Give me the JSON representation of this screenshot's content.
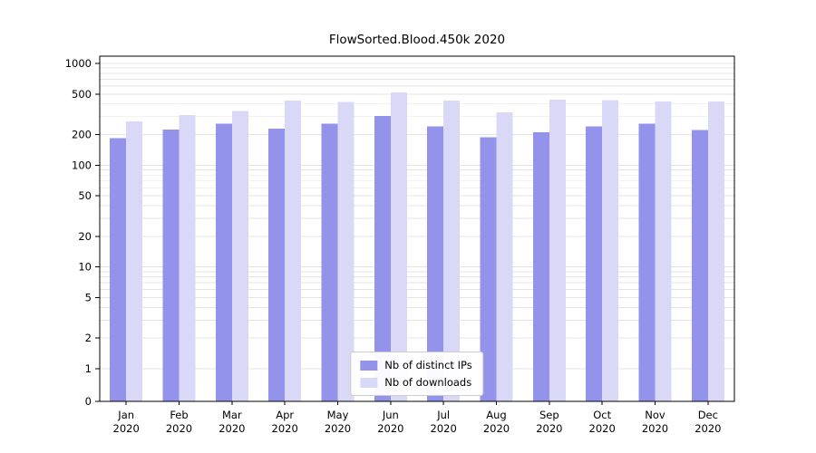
{
  "title": "FlowSorted.Blood.450k 2020",
  "chart_data": {
    "type": "bar",
    "title": "FlowSorted.Blood.450k 2020",
    "categories": [
      "Jan",
      "Feb",
      "Mar",
      "Apr",
      "May",
      "Jun",
      "Jul",
      "Aug",
      "Sep",
      "Oct",
      "Nov",
      "Dec"
    ],
    "year": "2020",
    "series": [
      {
        "name": "Nb of distinct IPs",
        "color": "#9493ec",
        "values": [
          185,
          225,
          255,
          228,
          255,
          305,
          240,
          188,
          210,
          240,
          255,
          222
        ]
      },
      {
        "name": "Nb of downloads",
        "color": "#d9d9f7",
        "values": [
          270,
          310,
          340,
          430,
          420,
          520,
          430,
          330,
          440,
          435,
          425,
          425
        ]
      }
    ],
    "yscale": "log-with-zero-baseline",
    "yticks": [
      0,
      1,
      2,
      5,
      10,
      20,
      50,
      100,
      200,
      500,
      1000
    ],
    "ylim": [
      0,
      1000
    ],
    "xlabel": "",
    "ylabel": "",
    "grid": "horizontal-minor-log",
    "legend_position": "lower center",
    "gridline_color": "#e4e4e4",
    "axis_color": "#000000"
  }
}
